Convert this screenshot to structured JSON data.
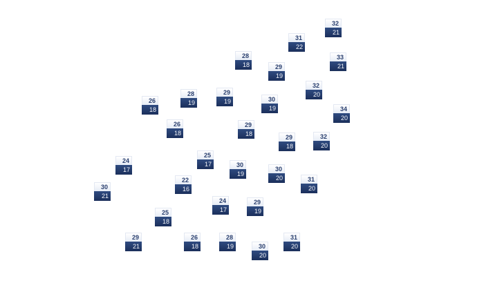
{
  "markers": [
    {
      "high": "32",
      "low": "21"
    },
    {
      "high": "31",
      "low": "22"
    },
    {
      "high": "28",
      "low": "18"
    },
    {
      "high": "29",
      "low": "19"
    },
    {
      "high": "33",
      "low": "21"
    },
    {
      "high": "32",
      "low": "20"
    },
    {
      "high": "26",
      "low": "18"
    },
    {
      "high": "28",
      "low": "19"
    },
    {
      "high": "29",
      "low": "19"
    },
    {
      "high": "30",
      "low": "19"
    },
    {
      "high": "34",
      "low": "20"
    },
    {
      "high": "26",
      "low": "18"
    },
    {
      "high": "29",
      "low": "18"
    },
    {
      "high": "29",
      "low": "18"
    },
    {
      "high": "32",
      "low": "20"
    },
    {
      "high": "25",
      "low": "17"
    },
    {
      "high": "24",
      "low": "17"
    },
    {
      "high": "30",
      "low": "19"
    },
    {
      "high": "30",
      "low": "20"
    },
    {
      "high": "22",
      "low": "16"
    },
    {
      "high": "31",
      "low": "20"
    },
    {
      "high": "30",
      "low": "21"
    },
    {
      "high": "24",
      "low": "17"
    },
    {
      "high": "29",
      "low": "19"
    },
    {
      "high": "25",
      "low": "18"
    },
    {
      "high": "29",
      "low": "21"
    },
    {
      "high": "26",
      "low": "18"
    },
    {
      "high": "28",
      "low": "19"
    },
    {
      "high": "30",
      "low": "20"
    },
    {
      "high": "31",
      "low": "20"
    }
  ],
  "colors": {
    "high_bg": "#ffffff",
    "low_bg": "#1f3564",
    "high_text": "#2a3f6e",
    "low_text": "#f2f4f9"
  }
}
